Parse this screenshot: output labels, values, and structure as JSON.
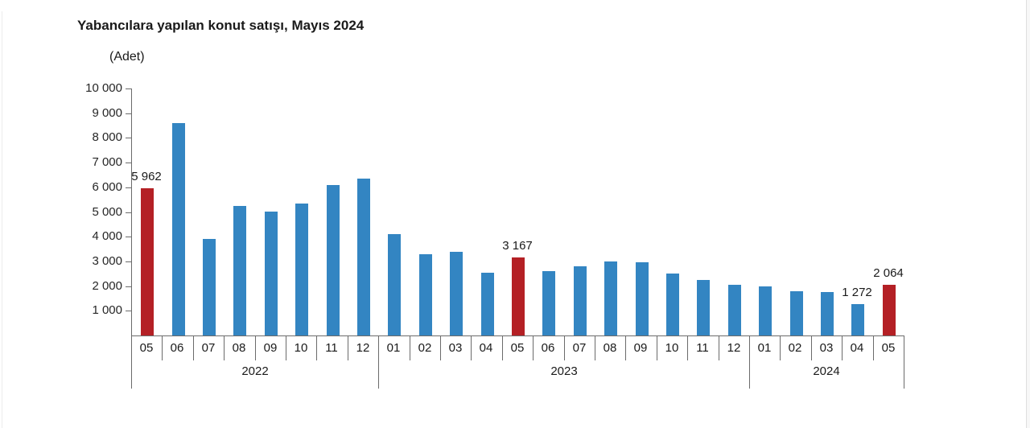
{
  "title": "Yabancılara yapılan konut satışı, Mayıs 2024",
  "unit_label": "(Adet)",
  "colors": {
    "bar": "#3385c2",
    "highlight": "#b42025",
    "axis": "#6b6b6b",
    "text": "#1a1a1a"
  },
  "chart_data": {
    "type": "bar",
    "title": "Yabancılara yapılan konut satışı, Mayıs 2024",
    "ylabel": "(Adet)",
    "xlabel": "",
    "ylim": [
      0,
      10000
    ],
    "ytick_interval": 1000,
    "ytick_labels": [
      "1 000",
      "2 000",
      "3 000",
      "4 000",
      "5 000",
      "6 000",
      "7 000",
      "8 000",
      "9 000",
      "10 000"
    ],
    "grid": false,
    "legend": false,
    "groups": [
      {
        "year": "2022",
        "bars": [
          {
            "month": "05",
            "value": 5962,
            "highlight": true,
            "label": "5 962"
          },
          {
            "month": "06",
            "value": 8600
          },
          {
            "month": "07",
            "value": 3900
          },
          {
            "month": "08",
            "value": 5250
          },
          {
            "month": "09",
            "value": 5000
          },
          {
            "month": "10",
            "value": 5350
          },
          {
            "month": "11",
            "value": 6100
          },
          {
            "month": "12",
            "value": 6350
          }
        ]
      },
      {
        "year": "2023",
        "bars": [
          {
            "month": "01",
            "value": 4100
          },
          {
            "month": "02",
            "value": 3300
          },
          {
            "month": "03",
            "value": 3400
          },
          {
            "month": "04",
            "value": 2550
          },
          {
            "month": "05",
            "value": 3167,
            "highlight": true,
            "label": "3 167"
          },
          {
            "month": "06",
            "value": 2600
          },
          {
            "month": "07",
            "value": 2800
          },
          {
            "month": "08",
            "value": 3000
          },
          {
            "month": "09",
            "value": 2950
          },
          {
            "month": "10",
            "value": 2500
          },
          {
            "month": "11",
            "value": 2250
          },
          {
            "month": "12",
            "value": 2050
          }
        ]
      },
      {
        "year": "2024",
        "bars": [
          {
            "month": "01",
            "value": 2000
          },
          {
            "month": "02",
            "value": 1800
          },
          {
            "month": "03",
            "value": 1750
          },
          {
            "month": "04",
            "value": 1272,
            "label": "1 272"
          },
          {
            "month": "05",
            "value": 2064,
            "highlight": true,
            "label": "2 064"
          }
        ]
      }
    ]
  }
}
